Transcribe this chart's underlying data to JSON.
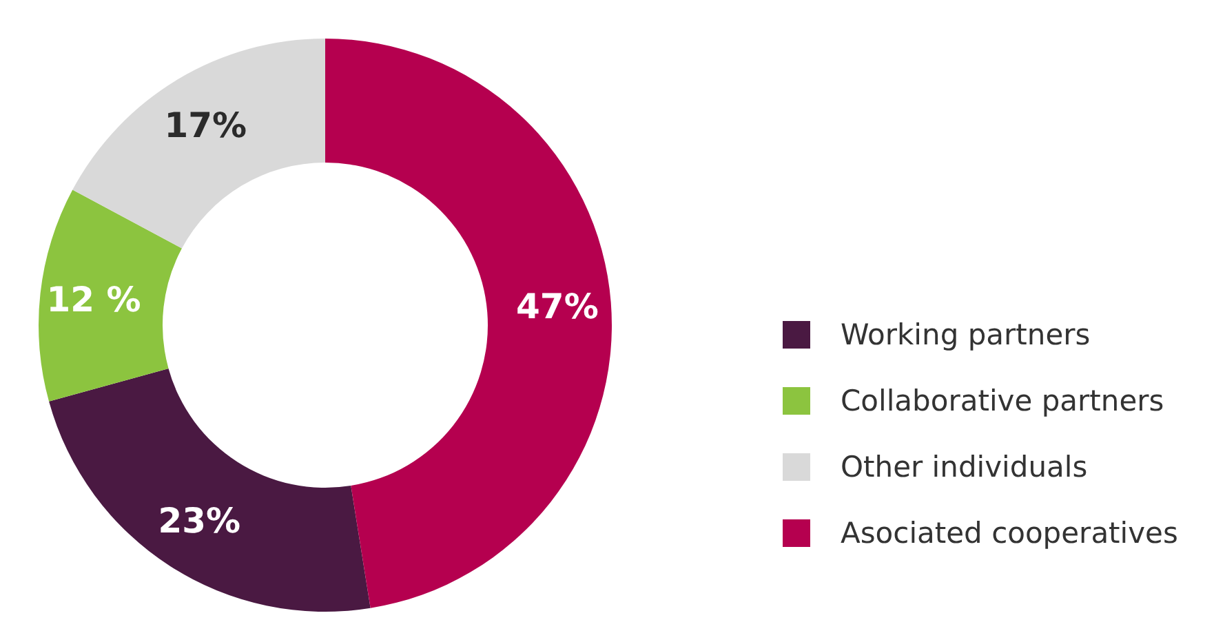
{
  "chart_data": {
    "type": "donut",
    "categories": [
      "Working partners",
      "Collaborative partners",
      "Other individuals",
      "Asociated cooperatives"
    ],
    "values": [
      23,
      12,
      17,
      47
    ],
    "colors": [
      "#4a1942",
      "#8cc43f",
      "#d9d9d9",
      "#b5004f"
    ],
    "value_labels": [
      "23%",
      "12 %",
      "17%",
      "47%"
    ],
    "legend": "right"
  }
}
